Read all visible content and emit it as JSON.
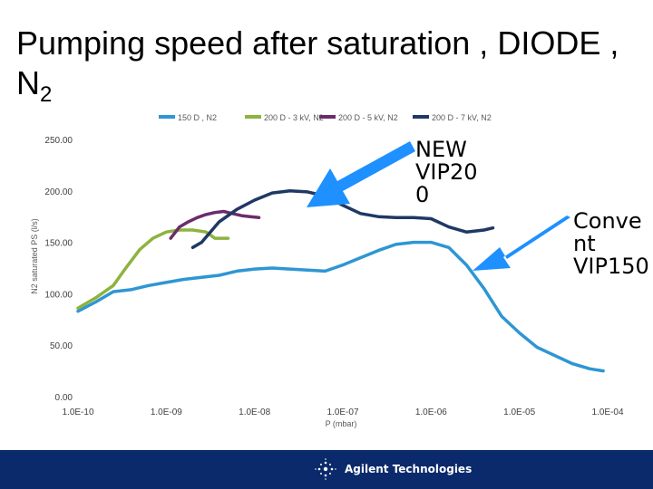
{
  "slide": {
    "title_main": "Pumping speed after saturation , DIODE ,",
    "title_line2": "N",
    "title_subscript": "2"
  },
  "callouts": {
    "new": "NEW\nVIP20\n0",
    "conventional": "Conve\nnt\nVIP150",
    "arrow_color": "#1e90ff"
  },
  "footer": {
    "brand": "Agilent Technologies",
    "background": "#0b2a6b"
  },
  "chart_data": {
    "type": "line",
    "title": "",
    "xlabel": "P (mbar)",
    "ylabel": "N2 saturated PS (l/s)",
    "xscale": "log",
    "xlim": [
      -10,
      -4
    ],
    "ylim": [
      0,
      250
    ],
    "yticks": [
      0,
      50,
      100,
      150,
      200,
      250
    ],
    "yticklabels": [
      "0.00",
      "50.00",
      "100.00",
      "150.00",
      "200.00",
      "250.00"
    ],
    "xticks": [
      -10,
      -9,
      -8,
      -7,
      -6,
      -5,
      -4
    ],
    "xticklabels": [
      "1.0E-10",
      "1.0E-09",
      "1.0E-08",
      "1.0E-07",
      "1.0E-06",
      "1.0E-05",
      "1.0E-04"
    ],
    "legend_position": "top",
    "series": [
      {
        "name": "150 D , N2",
        "color": "#2e96d3",
        "log_x": [
          -10,
          -9.8,
          -9.6,
          -9.4,
          -9.2,
          -9.0,
          -8.8,
          -8.6,
          -8.4,
          -8.2,
          -8.0,
          -7.8,
          -7.6,
          -7.4,
          -7.2,
          -7.0,
          -6.8,
          -6.6,
          -6.4,
          -6.2,
          -6.0,
          -5.8,
          -5.6,
          -5.4,
          -5.2,
          -5.0,
          -4.8,
          -4.6,
          -4.4,
          -4.2,
          -4.05
        ],
        "y": [
          83,
          92,
          102,
          104,
          108,
          111,
          114,
          116,
          118,
          122,
          124,
          125,
          124,
          123,
          122,
          128,
          135,
          142,
          148,
          150,
          150,
          145,
          128,
          105,
          78,
          62,
          48,
          40,
          32,
          27,
          25
        ]
      },
      {
        "name": "200 D - 3 kV, N2",
        "color": "#8db33f",
        "log_x": [
          -10,
          -9.8,
          -9.6,
          -9.45,
          -9.3,
          -9.15,
          -9.0,
          -8.85,
          -8.7,
          -8.55,
          -8.45,
          -8.3
        ],
        "y": [
          86,
          96,
          108,
          126,
          143,
          154,
          160,
          162,
          162,
          160,
          154,
          154
        ]
      },
      {
        "name": "200 D - 5 kV, N2",
        "color": "#6b2c6b",
        "log_x": [
          -8.95,
          -8.85,
          -8.75,
          -8.65,
          -8.55,
          -8.45,
          -8.35,
          -8.25,
          -8.15,
          -8.05,
          -7.95
        ],
        "y": [
          154,
          165,
          170,
          174,
          177,
          179,
          180,
          178,
          176,
          175,
          174
        ]
      },
      {
        "name": "200 D - 7 kV, N2",
        "color": "#1f3864",
        "log_x": [
          -8.7,
          -8.6,
          -8.5,
          -8.4,
          -8.2,
          -8.0,
          -7.8,
          -7.6,
          -7.4,
          -7.2,
          -7.0,
          -6.8,
          -6.6,
          -6.4,
          -6.2,
          -6.0,
          -5.8,
          -5.6,
          -5.4,
          -5.3
        ],
        "y": [
          145,
          150,
          160,
          170,
          182,
          191,
          198,
          200,
          199,
          195,
          186,
          178,
          175,
          174,
          174,
          173,
          165,
          160,
          162,
          164
        ]
      }
    ]
  }
}
